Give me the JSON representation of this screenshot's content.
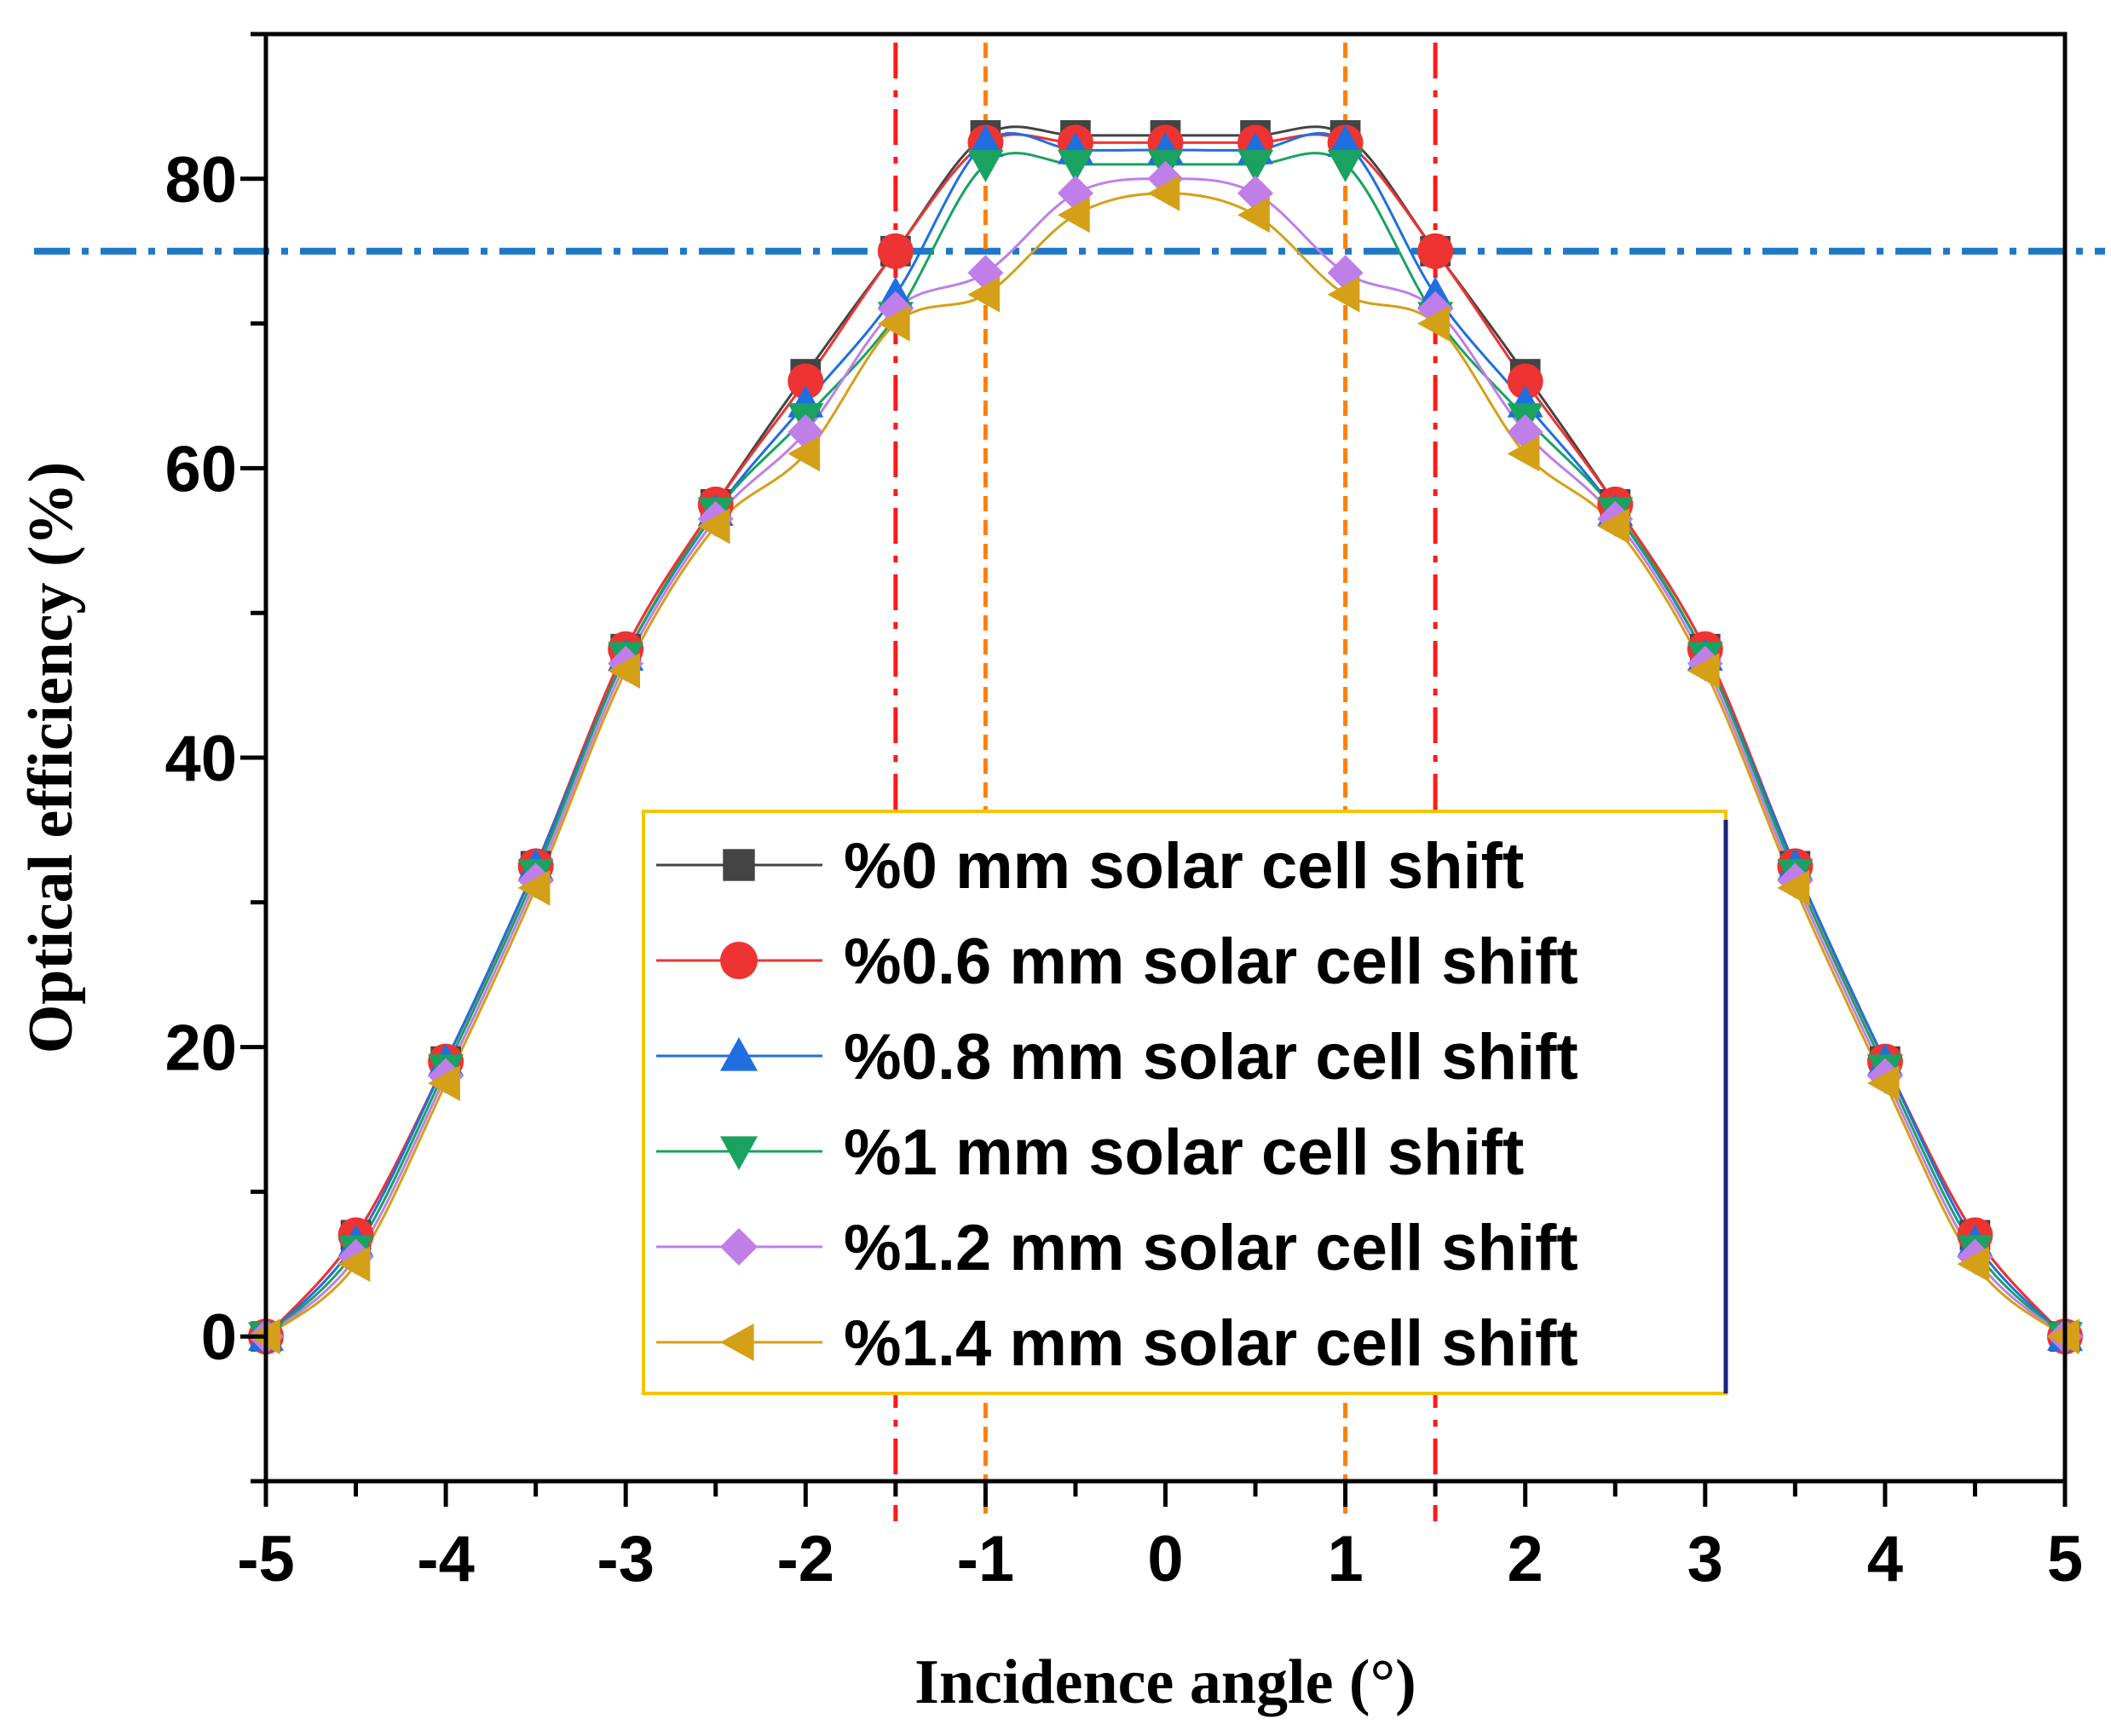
{
  "chart_data": {
    "type": "line",
    "title": "",
    "xlabel": "Incidence angle (°)",
    "ylabel": "Optical efficiency (%)",
    "xlim": [
      -5,
      5
    ],
    "ylim": [
      -10,
      90
    ],
    "xticks": [
      -5,
      -4,
      -3,
      -2,
      -1,
      0,
      1,
      2,
      3,
      4,
      5
    ],
    "xtick_labels": [
      "-5",
      "-4",
      "-3",
      "-2",
      "-1",
      "0",
      "1",
      "2",
      "3",
      "4",
      "5"
    ],
    "yticks": [
      0,
      20,
      40,
      60,
      80
    ],
    "ytick_labels": [
      "0",
      "20",
      "40",
      "60",
      "80"
    ],
    "grid": false,
    "legend_position": "bottom-center",
    "x": [
      -5,
      -4.5,
      -4,
      -3.5,
      -3,
      -2.5,
      -2,
      -1.5,
      -1,
      -0.5,
      0,
      0.5,
      1,
      1.5,
      2,
      2.5,
      3,
      3.5,
      4,
      4.5,
      5
    ],
    "series": [
      {
        "name": "%0 mm solar cell shift",
        "color": "#444444",
        "marker": "square",
        "values": [
          0,
          7,
          19,
          32.5,
          47.5,
          57.5,
          66.5,
          75,
          83,
          83,
          83,
          83,
          83,
          75,
          66.5,
          57.5,
          47.5,
          32.5,
          19,
          7,
          0
        ]
      },
      {
        "name": "%0.6 mm solar cell shift",
        "color": "#ee3333",
        "marker": "circle",
        "values": [
          0,
          7,
          19,
          32.5,
          47.5,
          57.5,
          66,
          75,
          82.5,
          82.5,
          82.5,
          82.5,
          82.5,
          75,
          66,
          57.5,
          47.5,
          32.5,
          19,
          7,
          0
        ]
      },
      {
        "name": "%0.8 mm solar cell shift",
        "color": "#1f6fe0",
        "marker": "triangle-up",
        "values": [
          0,
          6.5,
          19,
          32.5,
          47,
          57,
          64.5,
          72,
          82.5,
          82,
          82,
          82,
          82.5,
          72,
          64.5,
          57,
          47,
          32.5,
          19,
          6.5,
          0
        ]
      },
      {
        "name": "%1 mm solar cell shift",
        "color": "#1aa260",
        "marker": "triangle-down",
        "values": [
          0,
          6,
          18.5,
          32,
          47,
          57,
          63.5,
          70.5,
          81,
          81,
          81,
          81,
          81,
          70.5,
          63.5,
          57,
          47,
          32,
          18.5,
          6,
          0
        ]
      },
      {
        "name": "%1.2 mm solar cell shift",
        "color": "#c07ee8",
        "marker": "diamond",
        "values": [
          0,
          5.5,
          18,
          31.5,
          46.5,
          56.5,
          62.5,
          71,
          73.5,
          79,
          80,
          79,
          73.5,
          71,
          62.5,
          56.5,
          46.5,
          31.5,
          18,
          5.5,
          0
        ]
      },
      {
        "name": "%1.4 mm solar cell shift",
        "color": "#d4a017",
        "marker": "triangle-left",
        "values": [
          0,
          5,
          17.5,
          31,
          46,
          56,
          61,
          70,
          72,
          77.5,
          79,
          77.5,
          72,
          70,
          61,
          56,
          46,
          31,
          17.5,
          5,
          0
        ]
      }
    ],
    "reference_lines": [
      {
        "name": "threshold-line",
        "orientation": "horizontal",
        "value": 75,
        "color": "#1f77c8",
        "style": "dash-dot"
      },
      {
        "name": "outer-left-line",
        "orientation": "vertical",
        "value": -1.5,
        "color": "#ff1a1a",
        "style": "dash-dot"
      },
      {
        "name": "outer-right-line",
        "orientation": "vertical",
        "value": 1.5,
        "color": "#ff1a1a",
        "style": "dash-dot"
      },
      {
        "name": "inner-left-line",
        "orientation": "vertical",
        "value": -1,
        "color": "#ff8000",
        "style": "dashed"
      },
      {
        "name": "inner-right-line",
        "orientation": "vertical",
        "value": 1,
        "color": "#ff8000",
        "style": "dashed"
      }
    ]
  }
}
